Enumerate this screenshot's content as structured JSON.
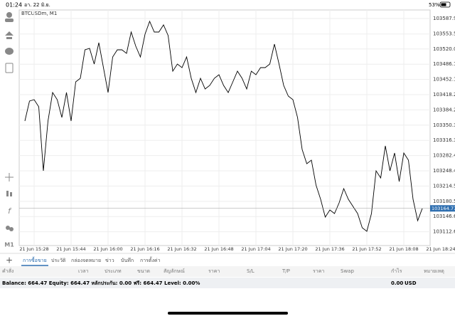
{
  "status_bar": {
    "time": "01:24",
    "date": "อา. 22 มิ.ย.",
    "battery": "53%"
  },
  "toolbar": {
    "timeframe": "M1"
  },
  "chart_data": {
    "type": "line",
    "title": "BTCUSDm, M1",
    "color": "#000000",
    "grid": true,
    "categories": [
      null,
      null,
      "21 Jun 15:28",
      null,
      null,
      null,
      null,
      null,
      null,
      null,
      "21 Jun 15:44",
      null,
      null,
      null,
      null,
      null,
      null,
      null,
      "21 Jun 16:00",
      null,
      null,
      null,
      null,
      null,
      null,
      null,
      "21 Jun 16:16",
      null,
      null,
      null,
      null,
      null,
      null,
      null,
      "21 Jun 16:32",
      null,
      null,
      null,
      null,
      null,
      null,
      null,
      "21 Jun 16:48",
      null,
      null,
      null,
      null,
      null,
      null,
      null,
      "21 Jun 17:04",
      null,
      null,
      null,
      null,
      null,
      null,
      null,
      "21 Jun 17:20",
      null,
      null,
      null,
      null,
      null,
      null,
      null,
      "21 Jun 17:36",
      null,
      null,
      null,
      null,
      null,
      null,
      null,
      "21 Jun 17:52",
      null,
      null,
      null,
      null,
      null,
      null,
      null,
      "21 Jun 18:08",
      null,
      null,
      null,
      null,
      null,
      null,
      null,
      "21 Jun 18:24"
    ],
    "values": [
      103359.5,
      103403.9,
      103407.1,
      103391.2,
      103248.5,
      103359.5,
      103423.0,
      103407.1,
      103367.4,
      103423.0,
      103359.5,
      103446.8,
      103454.7,
      103518.2,
      103521.3,
      103486.4,
      103534.0,
      103478.5,
      103423.0,
      103502.3,
      103518.2,
      103518.2,
      103510.2,
      103557.8,
      103526.1,
      103502.3,
      103553.1,
      103581.6,
      103557.8,
      103557.8,
      103573.7,
      103549.9,
      103470.6,
      103486.4,
      103478.5,
      103502.3,
      103454.7,
      103423.0,
      103454.7,
      103430.9,
      103438.8,
      103454.7,
      103462.6,
      103438.8,
      103423.0,
      103446.8,
      103470.6,
      103454.7,
      103430.9,
      103470.6,
      103462.6,
      103478.5,
      103478.5,
      103486.4,
      103530.8,
      103486.4,
      103438.8,
      103415.0,
      103407.1,
      103367.4,
      103296.0,
      103264.3,
      103272.3,
      103216.7,
      103185.0,
      103145.3,
      103161.2,
      103153.3,
      103177.1,
      103208.8,
      103185.0,
      103169.1,
      103153.3,
      103121.6,
      103113.6,
      103153.3,
      103248.5,
      103232.6,
      103304.0,
      103248.5,
      103288.1,
      103224.7,
      103288.1,
      103272.3,
      103185.0,
      103137.4,
      103164.77,
      null,
      null,
      null,
      null
    ],
    "ylim": [
      103081.9,
      103607.0
    ],
    "yticks": [
      103587.95,
      {
        "value": 103553.5,
        "label": "103553.50"
      },
      103520.05,
      {
        "value": 103486.1,
        "label": "103486.10"
      },
      {
        "value": 103452.15,
        "label": "103452.15"
      },
      {
        "value": 103418.2,
        "label": "103418.20"
      },
      103384.25,
      {
        "value": 103350.3,
        "label": "103350.30"
      },
      103316.35,
      {
        "value": 103282.4,
        "label": "103282.40"
      },
      103248.45,
      {
        "value": 103214.5,
        "label": "103214.50"
      },
      103180.55,
      {
        "value": 103146.6,
        "label": "103146.60"
      },
      103112.65
    ],
    "current_price": 103164.77
  },
  "tabs": [
    "การซื้อขาย",
    "ประวัติ",
    "กล่องจดหมาย",
    "ข่าว",
    "บันทึก",
    "การตั้งค่า"
  ],
  "columns": [
    "คำสั่ง",
    "เวลา",
    "ประเภท",
    "ขนาด",
    "สัญลักษณ์",
    "ราคา",
    "S/L",
    "T/P",
    "ราคา",
    "Swap",
    "กำไร",
    "หมายเหตุ"
  ],
  "footer": {
    "summary": "Balance: 664.47 Equity: 664.47 หลักประกัน: 0.00 ฟรี: 664.47 Level: 0.00%",
    "profit": "0.00",
    "currency": "USD"
  }
}
